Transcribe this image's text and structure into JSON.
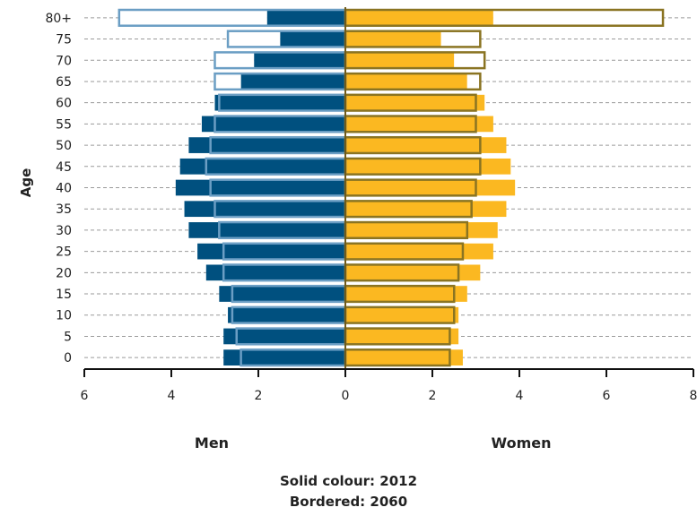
{
  "chart_data": {
    "type": "bar",
    "orientation": "horizontal",
    "subtype": "population-pyramid",
    "ylabel": "Age",
    "categories": [
      "0",
      "5",
      "10",
      "15",
      "20",
      "25",
      "30",
      "35",
      "40",
      "45",
      "50",
      "55",
      "60",
      "65",
      "70",
      "75",
      "80+"
    ],
    "x_ticks": [
      "6",
      "4",
      "2",
      "0",
      "2",
      "4",
      "6",
      "8"
    ],
    "xlim_men": [
      0,
      6
    ],
    "xlim_women": [
      0,
      8
    ],
    "series": [
      {
        "name": "Men",
        "year": "2012",
        "style": "solid",
        "values": [
          2.8,
          2.8,
          2.7,
          2.9,
          3.2,
          3.4,
          3.6,
          3.7,
          3.9,
          3.8,
          3.6,
          3.3,
          3.0,
          2.4,
          2.1,
          1.5,
          1.8
        ]
      },
      {
        "name": "Women",
        "year": "2012",
        "style": "solid",
        "values": [
          2.7,
          2.6,
          2.6,
          2.8,
          3.1,
          3.4,
          3.5,
          3.7,
          3.9,
          3.8,
          3.7,
          3.4,
          3.2,
          2.8,
          2.5,
          2.2,
          3.4
        ]
      },
      {
        "name": "Men",
        "year": "2060",
        "style": "bordered",
        "values": [
          2.4,
          2.5,
          2.6,
          2.6,
          2.8,
          2.8,
          2.9,
          3.0,
          3.1,
          3.2,
          3.1,
          3.0,
          2.9,
          3.0,
          3.0,
          2.7,
          5.2
        ]
      },
      {
        "name": "Women",
        "year": "2060",
        "style": "bordered",
        "values": [
          2.4,
          2.4,
          2.5,
          2.5,
          2.6,
          2.7,
          2.8,
          2.9,
          3.0,
          3.1,
          3.1,
          3.0,
          3.0,
          3.1,
          3.2,
          3.1,
          7.3
        ]
      }
    ],
    "side_labels": {
      "left": "Men",
      "right": "Women"
    },
    "legend_lines": [
      "Solid colour: 2012",
      "Bordered: 2060"
    ],
    "colors": {
      "men": "#00507f",
      "women": "#fbb821",
      "men_border": "#6b9ec4",
      "women_border": "#8a7422",
      "grid": "#9a9a9a",
      "axis": "#111111"
    },
    "grid": "dashed-horizontal"
  }
}
